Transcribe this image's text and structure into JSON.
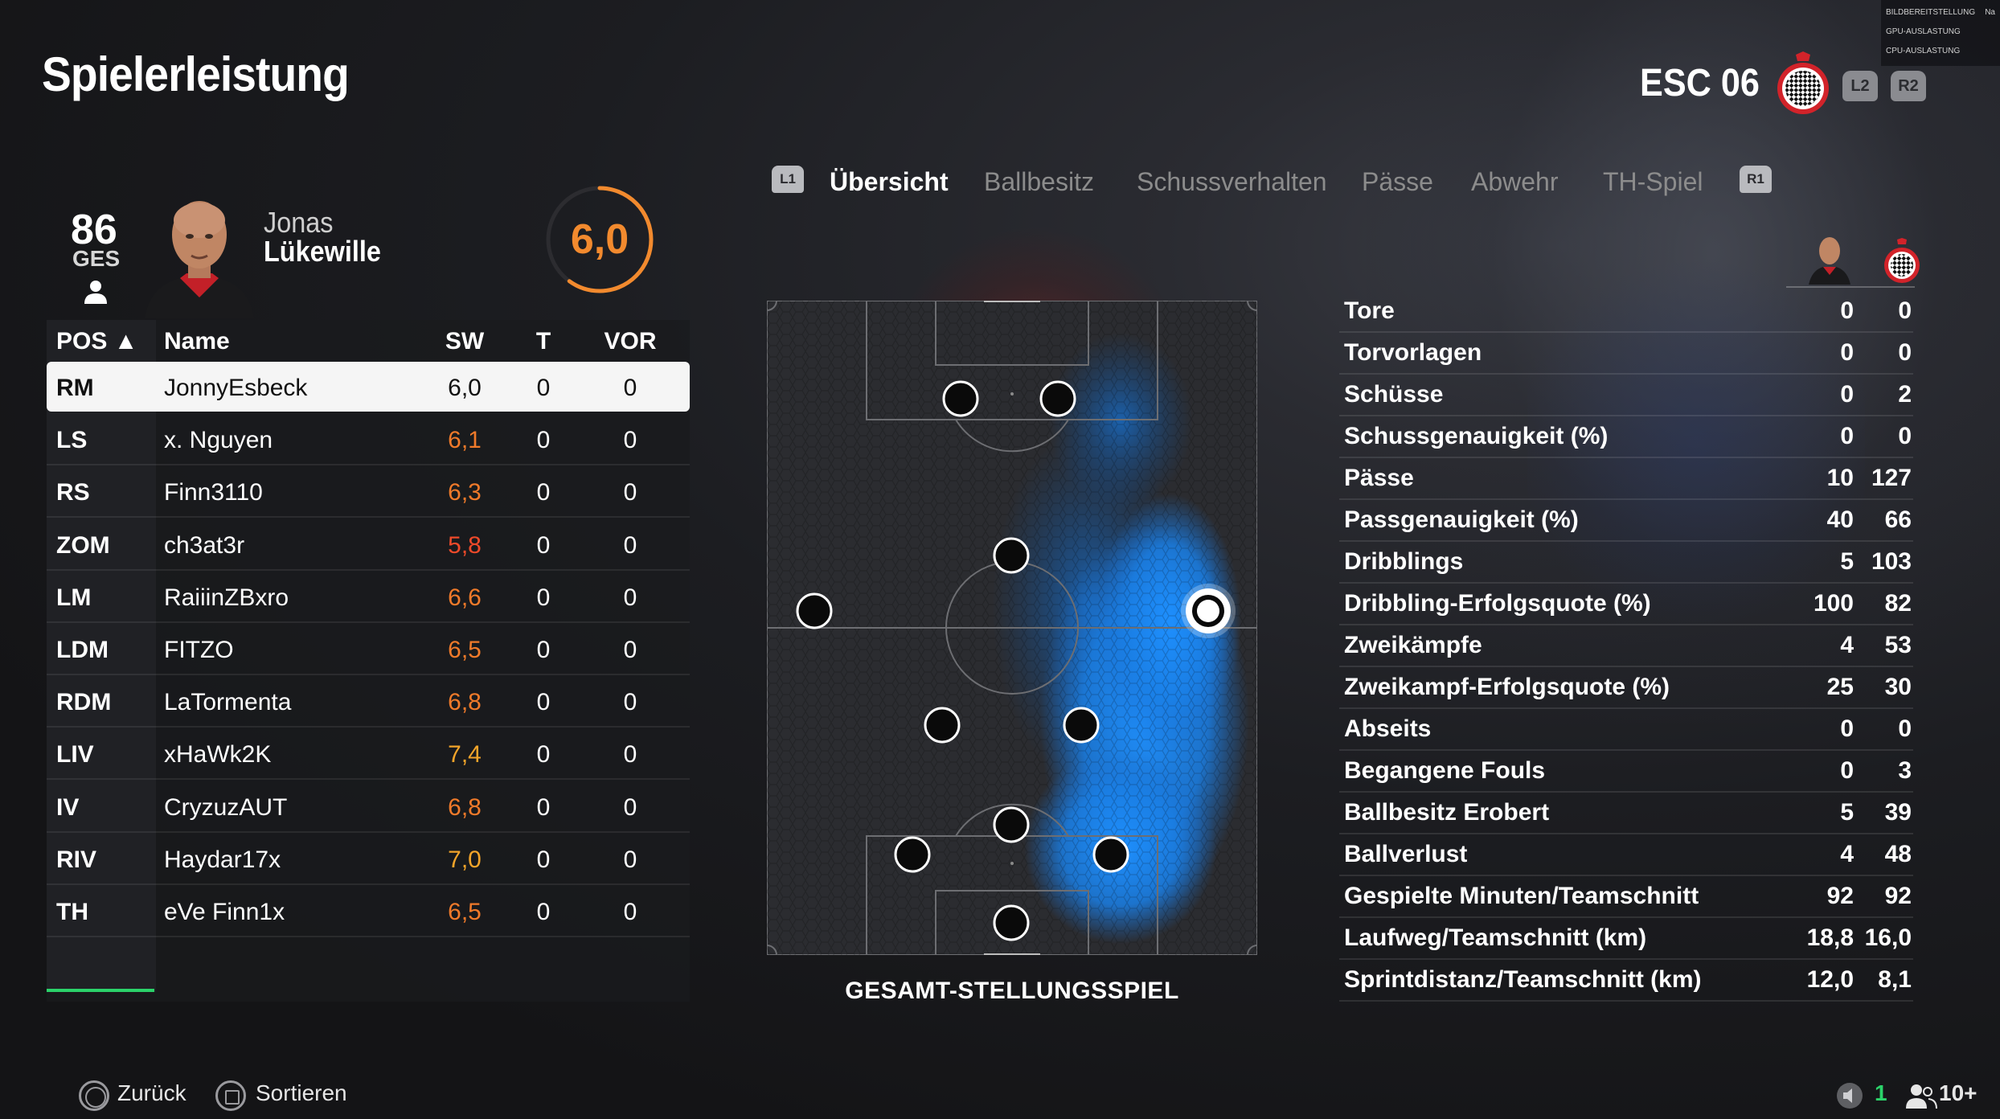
{
  "title": "Spielerleistung",
  "team": {
    "name": "ESC 06",
    "buttons": [
      "L2",
      "R2"
    ]
  },
  "perf_overlay": [
    {
      "label": "BILDBEREITSTELLUNG",
      "value": "Na"
    },
    {
      "label": "GPU-AUSLASTUNG",
      "value": ""
    },
    {
      "label": "CPU-AUSLASTUNG",
      "value": ""
    }
  ],
  "player": {
    "overall": "86",
    "overall_label": "GES",
    "first_name": "Jonas",
    "last_name": "Lükewille",
    "rating": "6,0",
    "rating_fraction": 0.6
  },
  "table": {
    "headers": {
      "pos": "POS ▲",
      "name": "Name",
      "sw": "SW",
      "t": "T",
      "vor": "VOR"
    },
    "rows": [
      {
        "pos": "RM",
        "name": "JonnyEsbeck",
        "sw": "6,0",
        "t": "0",
        "vor": "0",
        "color": "#111111",
        "selected": true
      },
      {
        "pos": "LS",
        "name": "x. Nguyen",
        "sw": "6,1",
        "t": "0",
        "vor": "0",
        "color": "#f07a2a"
      },
      {
        "pos": "RS",
        "name": "Finn3110",
        "sw": "6,3",
        "t": "0",
        "vor": "0",
        "color": "#f07a2a"
      },
      {
        "pos": "ZOM",
        "name": "ch3at3r",
        "sw": "5,8",
        "t": "0",
        "vor": "0",
        "color": "#ee4a2a"
      },
      {
        "pos": "LM",
        "name": "RaiiinZBxro",
        "sw": "6,6",
        "t": "0",
        "vor": "0",
        "color": "#f07a2a"
      },
      {
        "pos": "LDM",
        "name": "FITZO",
        "sw": "6,5",
        "t": "0",
        "vor": "0",
        "color": "#f07a2a"
      },
      {
        "pos": "RDM",
        "name": "LaTormenta",
        "sw": "6,8",
        "t": "0",
        "vor": "0",
        "color": "#f07a2a"
      },
      {
        "pos": "LIV",
        "name": "xHaWk2K",
        "sw": "7,4",
        "t": "0",
        "vor": "0",
        "color": "#f2a42a"
      },
      {
        "pos": "IV",
        "name": "CryzuzAUT",
        "sw": "6,8",
        "t": "0",
        "vor": "0",
        "color": "#f07a2a"
      },
      {
        "pos": "RIV",
        "name": "Haydar17x",
        "sw": "7,0",
        "t": "0",
        "vor": "0",
        "color": "#f2a42a"
      },
      {
        "pos": "TH",
        "name": "eVe Finn1x",
        "sw": "6,5",
        "t": "0",
        "vor": "0",
        "color": "#f07a2a"
      }
    ]
  },
  "tabs": {
    "left_shoulder": "L1",
    "right_shoulder": "R1",
    "items": [
      "Übersicht",
      "Ballbesitz",
      "Schussverhalten",
      "Pässe",
      "Abwehr",
      "TH-Spiel"
    ],
    "active": 0
  },
  "pitch": {
    "label": "GESAMT-STELLUNGSSPIEL"
  },
  "stats": [
    {
      "label": "Tore",
      "player": "0",
      "team": "0"
    },
    {
      "label": "Torvorlagen",
      "player": "0",
      "team": "0"
    },
    {
      "label": "Schüsse",
      "player": "0",
      "team": "2"
    },
    {
      "label": "Schussgenauigkeit (%)",
      "player": "0",
      "team": "0"
    },
    {
      "label": "Pässe",
      "player": "10",
      "team": "127"
    },
    {
      "label": "Passgenauigkeit (%)",
      "player": "40",
      "team": "66"
    },
    {
      "label": "Dribblings",
      "player": "5",
      "team": "103"
    },
    {
      "label": "Dribbling-Erfolgsquote (%)",
      "player": "100",
      "team": "82"
    },
    {
      "label": "Zweikämpfe",
      "player": "4",
      "team": "53"
    },
    {
      "label": "Zweikampf-Erfolgsquote (%)",
      "player": "25",
      "team": "30"
    },
    {
      "label": "Abseits",
      "player": "0",
      "team": "0"
    },
    {
      "label": "Begangene Fouls",
      "player": "0",
      "team": "3"
    },
    {
      "label": "Ballbesitz Erobert",
      "player": "5",
      "team": "39"
    },
    {
      "label": "Ballverlust",
      "player": "4",
      "team": "48"
    },
    {
      "label": "Gespielte Minuten/Teamschnitt",
      "player": "92",
      "team": "92"
    },
    {
      "label": "Laufweg/Teamschnitt (km)",
      "player": "18,8",
      "team": "16,0"
    },
    {
      "label": "Sprintdistanz/Teamschnitt (km)",
      "player": "12,0",
      "team": "8,1"
    }
  ],
  "footer": {
    "back_label": "Zurück",
    "sort_label": "Sortieren",
    "count": "1",
    "party": "10+"
  },
  "colors": {
    "accent": "#2bd36a",
    "rating": "#f28a2e",
    "heat": "#1e8fff"
  }
}
